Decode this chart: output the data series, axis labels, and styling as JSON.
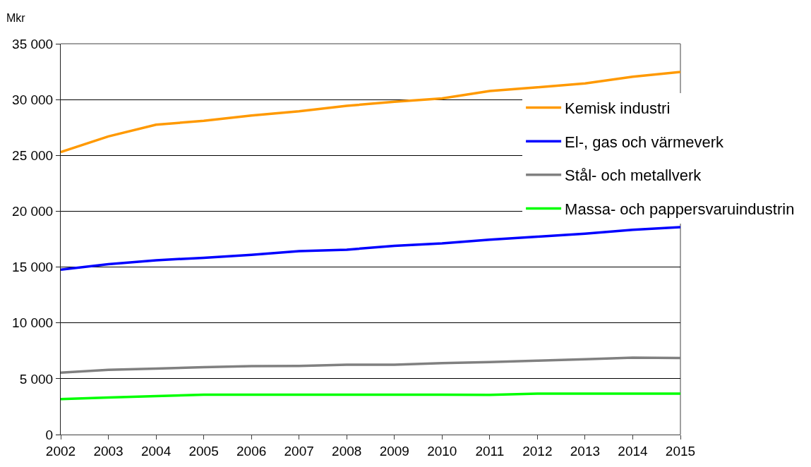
{
  "chart_data": {
    "type": "line",
    "ylabel": "Mkr",
    "x": [
      2002,
      2003,
      2004,
      2005,
      2006,
      2007,
      2008,
      2009,
      2010,
      2011,
      2012,
      2013,
      2014,
      2015
    ],
    "xlim": [
      2002,
      2015
    ],
    "xticks": [
      2002,
      2003,
      2004,
      2005,
      2006,
      2007,
      2008,
      2009,
      2010,
      2011,
      2012,
      2013,
      2014,
      2015
    ],
    "ylim": [
      0,
      35000
    ],
    "yticks": [
      0,
      {
        "value": 5000,
        "label": "5 000"
      },
      {
        "value": 10000,
        "label": "10 000"
      },
      {
        "value": 15000,
        "label": "15 000"
      },
      {
        "value": 20000,
        "label": "20 000"
      },
      {
        "value": 25000,
        "label": "25 000"
      },
      {
        "value": 30000,
        "label": "30 000"
      },
      {
        "value": 35000,
        "label": "35 000"
      }
    ],
    "grid": "y",
    "legend": "right",
    "line_style": "solid",
    "series": [
      {
        "name": "Kemisk industri",
        "color": "#ff9900",
        "values": [
          25300,
          26700,
          27750,
          28100,
          28570,
          28950,
          29440,
          29800,
          30100,
          30770,
          31100,
          31450,
          32050,
          32480
        ]
      },
      {
        "name": "El-, gas och värmeverk",
        "color": "#0000ff",
        "values": [
          14760,
          15250,
          15610,
          15830,
          16100,
          16430,
          16560,
          16900,
          17120,
          17450,
          17720,
          17990,
          18340,
          18570
        ]
      },
      {
        "name": "Stål- och metallverk",
        "color": "#808080",
        "values": [
          5550,
          5790,
          5900,
          6040,
          6130,
          6150,
          6260,
          6260,
          6400,
          6490,
          6610,
          6740,
          6880,
          6860
        ]
      },
      {
        "name": "Massa- och pappersvaruindustrin",
        "color": "#00ff00",
        "values": [
          3180,
          3310,
          3440,
          3570,
          3570,
          3570,
          3570,
          3570,
          3570,
          3560,
          3670,
          3670,
          3670,
          3670
        ]
      }
    ]
  }
}
